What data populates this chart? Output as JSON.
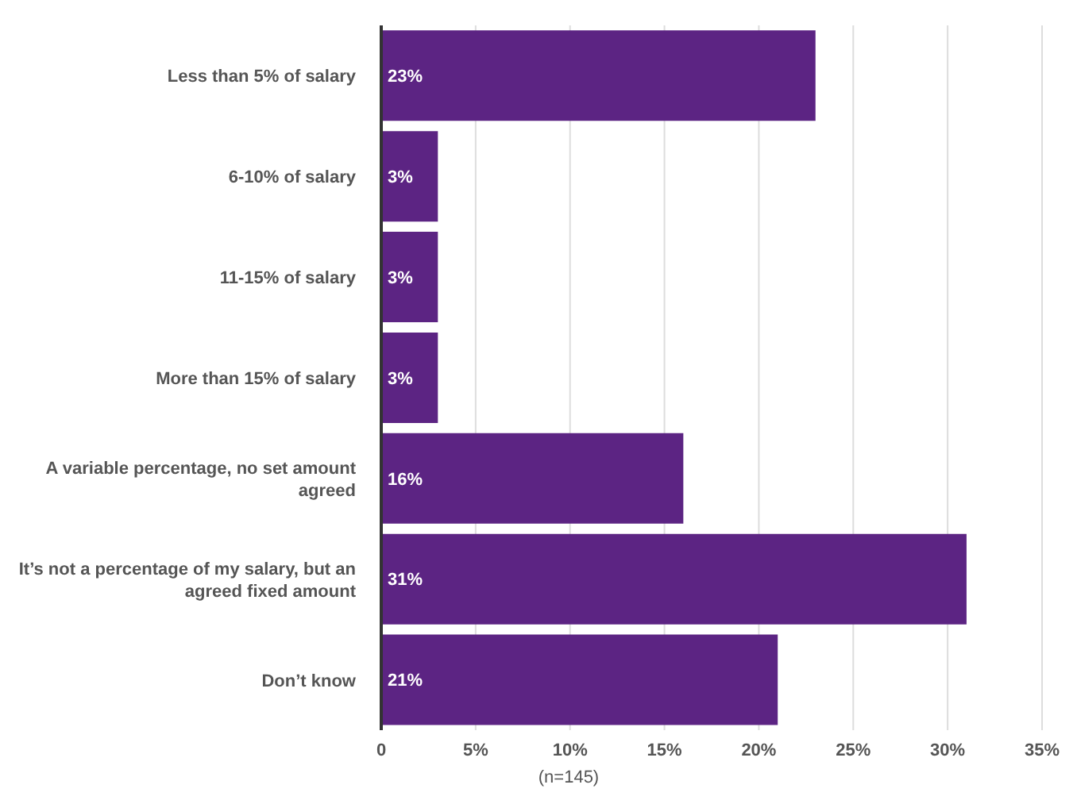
{
  "chart_data": {
    "type": "bar",
    "orientation": "horizontal",
    "categories": [
      "Less than 5% of salary",
      "6-10% of salary",
      "11-15% of salary",
      "More than 15% of salary",
      "A variable percentage, no set amount agreed",
      "It’s not a percentage of my salary, but an agreed fixed amount",
      "Don’t know"
    ],
    "values": [
      23,
      3,
      3,
      3,
      16,
      31,
      21
    ],
    "value_labels": [
      "23%",
      "3%",
      "3%",
      "3%",
      "16%",
      "31%",
      "21%"
    ],
    "color": "#5c2483",
    "xlim": [
      0,
      35
    ],
    "xticks": [
      0,
      {
        "value": 5,
        "label": "5%"
      },
      {
        "value": 10,
        "label": "10%"
      },
      {
        "value": 15,
        "label": "15%"
      },
      {
        "value": 20,
        "label": "20%"
      },
      {
        "value": 25,
        "label": "25%"
      },
      {
        "value": 30,
        "label": "30%"
      },
      {
        "value": 35,
        "label": "35%"
      }
    ],
    "grid": "x",
    "legend": false,
    "annotations": [
      "(n=145)"
    ]
  }
}
